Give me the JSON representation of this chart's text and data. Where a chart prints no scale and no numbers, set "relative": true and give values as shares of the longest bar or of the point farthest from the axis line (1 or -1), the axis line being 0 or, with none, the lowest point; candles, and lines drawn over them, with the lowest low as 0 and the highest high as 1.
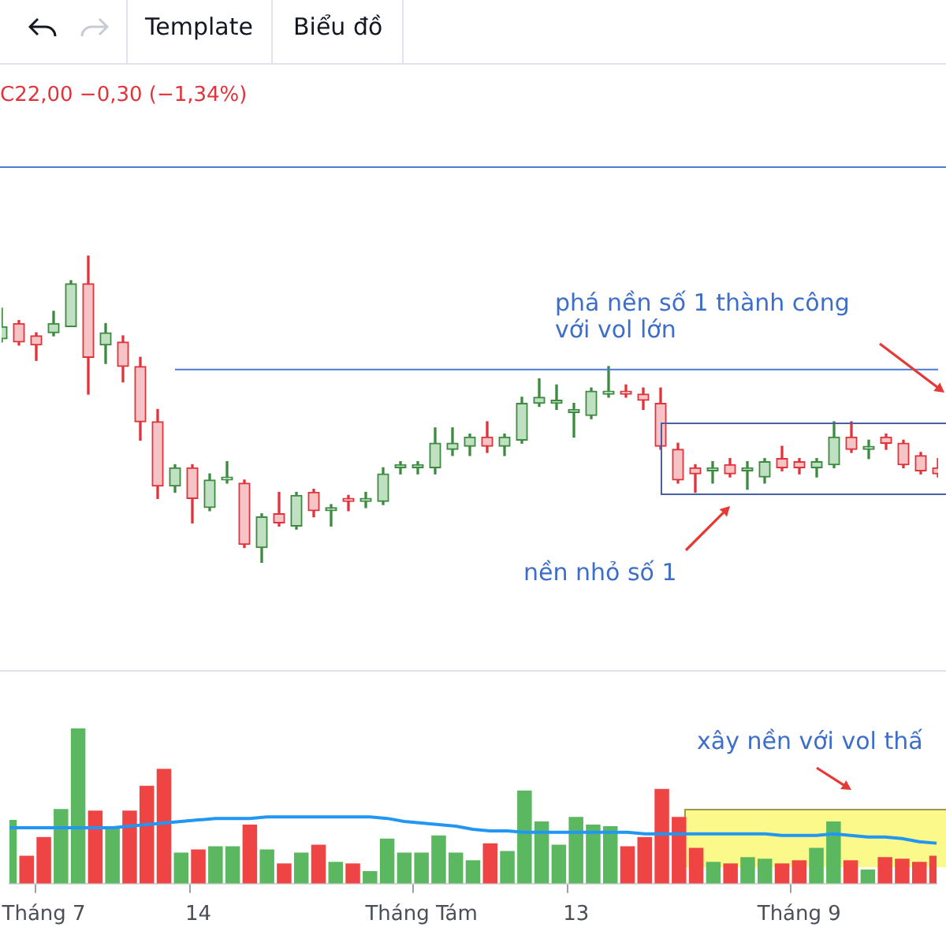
{
  "chart_data": [
    {
      "type": "candlestick",
      "relative": true,
      "tick_labels": false,
      "grid": false,
      "legend": false,
      "annotations": [
        "Template",
        "Biểu đồ",
        "C22,00 −0,30 (−1,34%)",
        "phá nền số 1 thành công\nvới vol lớn",
        "nền nhỏ số 1"
      ],
      "categories": [
        null,
        null,
        null,
        null,
        null,
        null,
        null,
        null,
        null,
        null,
        null,
        null,
        null,
        null,
        null,
        null,
        null,
        null,
        null,
        null,
        null,
        null,
        null,
        null,
        null,
        null,
        null,
        null,
        null,
        null,
        null,
        null,
        null,
        null,
        null,
        null,
        null,
        null,
        null,
        null,
        null,
        null,
        null,
        null,
        null,
        null,
        null,
        null,
        null,
        null,
        null,
        null,
        null,
        null,
        null
      ],
      "ohlc": [
        [
          0.73,
          0.83,
          0.72,
          0.77
        ],
        [
          0.78,
          0.79,
          0.71,
          0.72
        ],
        [
          0.74,
          0.75,
          0.66,
          0.71
        ],
        [
          0.75,
          0.82,
          0.74,
          0.78
        ],
        [
          0.77,
          0.92,
          0.77,
          0.91
        ],
        [
          0.91,
          1,
          0.55,
          0.67
        ],
        [
          0.71,
          0.78,
          0.65,
          0.75
        ],
        [
          0.72,
          0.74,
          0.59,
          0.64
        ],
        [
          0.64,
          0.67,
          0.4,
          0.46
        ],
        [
          0.46,
          0.5,
          0.21,
          0.25
        ],
        [
          0.25,
          0.32,
          0.23,
          0.31
        ],
        [
          0.31,
          0.32,
          0.13,
          0.21
        ],
        [
          0.18,
          0.29,
          0.17,
          0.27
        ],
        [
          0.27,
          0.33,
          0.26,
          0.28
        ],
        [
          0.26,
          0.27,
          0.05,
          0.06
        ],
        [
          0.05,
          0.16,
          0,
          0.15
        ],
        [
          0.16,
          0.23,
          0.12,
          0.13
        ],
        [
          0.12,
          0.23,
          0.11,
          0.22
        ],
        [
          0.23,
          0.24,
          0.15,
          0.17
        ],
        [
          0.17,
          0.19,
          0.12,
          0.18
        ],
        [
          0.21,
          0.22,
          0.17,
          0.2
        ],
        [
          0.2,
          0.23,
          0.18,
          0.21
        ],
        [
          0.2,
          0.31,
          0.19,
          0.29
        ],
        [
          0.31,
          0.33,
          0.29,
          0.32
        ],
        [
          0.31,
          0.33,
          0.29,
          0.32
        ],
        [
          0.31,
          0.44,
          0.29,
          0.39
        ],
        [
          0.37,
          0.44,
          0.35,
          0.39
        ],
        [
          0.38,
          0.42,
          0.35,
          0.41
        ],
        [
          0.41,
          0.46,
          0.36,
          0.38
        ],
        [
          0.38,
          0.42,
          0.35,
          0.41
        ],
        [
          0.4,
          0.54,
          0.39,
          0.52
        ],
        [
          0.52,
          0.6,
          0.51,
          0.54
        ],
        [
          0.52,
          0.58,
          0.5,
          0.53
        ],
        [
          0.49,
          0.52,
          0.41,
          0.5
        ],
        [
          0.48,
          0.57,
          0.47,
          0.56
        ],
        [
          0.55,
          0.64,
          0.54,
          0.56
        ],
        [
          0.56,
          0.58,
          0.54,
          0.55
        ],
        [
          0.55,
          0.57,
          0.5,
          0.53
        ],
        [
          0.52,
          0.57,
          0.37,
          0.38
        ],
        [
          0.37,
          0.39,
          0.26,
          0.27
        ],
        [
          0.31,
          0.32,
          0.23,
          0.29
        ],
        [
          0.3,
          0.33,
          0.26,
          0.31
        ],
        [
          0.32,
          0.34,
          0.28,
          0.29
        ],
        [
          0.3,
          0.33,
          0.24,
          0.31
        ],
        [
          0.28,
          0.34,
          0.26,
          0.33
        ],
        [
          0.34,
          0.38,
          0.3,
          0.31
        ],
        [
          0.33,
          0.34,
          0.29,
          0.31
        ],
        [
          0.31,
          0.34,
          0.28,
          0.33
        ],
        [
          0.32,
          0.46,
          0.31,
          0.41
        ],
        [
          0.41,
          0.46,
          0.36,
          0.37
        ],
        [
          0.37,
          0.4,
          0.34,
          0.38
        ],
        [
          0.41,
          0.42,
          0.37,
          0.39
        ],
        [
          0.39,
          0.4,
          0.31,
          0.32
        ],
        [
          0.35,
          0.36,
          0.29,
          0.3
        ],
        [
          0.31,
          0.34,
          0.28,
          0.29
        ]
      ],
      "series": [
        {
          "type": "line",
          "color": "#4a7bd0",
          "values": [
            null,
            null,
            null,
            null,
            null,
            null,
            null,
            null,
            null,
            null,
            0.63,
            0.63,
            0.63,
            0.63,
            0.63,
            0.63,
            0.63,
            0.63,
            0.63,
            0.63,
            0.63,
            0.63,
            0.63,
            0.63,
            0.63,
            0.63,
            0.63,
            0.63,
            0.63,
            0.63,
            0.63,
            0.63,
            0.63,
            0.63,
            0.63,
            0.63,
            0.63,
            0.63,
            0.63,
            0.63,
            0.63,
            0.63,
            0.63,
            0.63,
            0.63,
            0.63,
            0.63,
            0.63,
            0.63,
            0.63,
            0.63,
            0.63,
            0.63,
            0.63,
            0.63
          ]
        }
      ],
      "ref_lines": [
        {
          "axis": "y",
          "value": 1.29,
          "color": "#4a7bd0"
        }
      ]
    },
    {
      "type": "bar",
      "relative": true,
      "tick_labels": "x",
      "grid": false,
      "legend": false,
      "annotations": [
        "xây nền với vol thấ"
      ],
      "categories": [
        null,
        null,
        "Tháng 7",
        null,
        null,
        null,
        null,
        null,
        null,
        null,
        null,
        "14",
        null,
        null,
        null,
        null,
        null,
        null,
        null,
        null,
        null,
        null,
        null,
        null,
        "Tháng Tám",
        null,
        null,
        null,
        null,
        null,
        null,
        null,
        null,
        "13",
        null,
        null,
        null,
        null,
        null,
        null,
        null,
        null,
        null,
        null,
        null,
        null,
        "Tháng 9",
        null,
        null,
        null,
        null,
        null,
        null,
        null,
        null
      ],
      "series": [
        {
          "type": "bar",
          "values": [
            0.41,
            0.18,
            0.3,
            0.48,
            1,
            0.47,
            0.36,
            0.47,
            0.63,
            0.74,
            0.2,
            0.22,
            0.24,
            0.24,
            0.38,
            0.22,
            0.13,
            0.2,
            0.25,
            0.14,
            0.13,
            0.08,
            0.29,
            0.2,
            0.2,
            0.31,
            0.2,
            0.15,
            0.26,
            0.21,
            0.6,
            0.4,
            0.25,
            0.43,
            0.38,
            0.37,
            0.24,
            0.3,
            0.61,
            0.43,
            0.23,
            0.14,
            0.13,
            0.17,
            0.16,
            0.13,
            0.15,
            0.23,
            0.4,
            0.15,
            0.09,
            0.17,
            0.16,
            0.14,
            0.18
          ],
          "colors": [
            "#5cb860",
            "#ef4444",
            "#ef4444",
            "#5cb860",
            "#5cb860",
            "#ef4444",
            "#5cb860",
            "#ef4444",
            "#ef4444",
            "#ef4444",
            "#5cb860",
            "#ef4444",
            "#5cb860",
            "#5cb860",
            "#ef4444",
            "#5cb860",
            "#ef4444",
            "#5cb860",
            "#ef4444",
            "#5cb860",
            "#ef4444",
            "#5cb860",
            "#5cb860",
            "#5cb860",
            "#5cb860",
            "#5cb860",
            "#5cb860",
            "#5cb860",
            "#ef4444",
            "#5cb860",
            "#5cb860",
            "#5cb860",
            "#5cb860",
            "#5cb860",
            "#5cb860",
            "#5cb860",
            "#ef4444",
            "#ef4444",
            "#ef4444",
            "#ef4444",
            "#ef4444",
            "#5cb860",
            "#ef4444",
            "#5cb860",
            "#5cb860",
            "#ef4444",
            "#ef4444",
            "#5cb860",
            "#5cb860",
            "#ef4444",
            "#5cb860",
            "#ef4444",
            "#ef4444",
            "#ef4444",
            "#ef4444"
          ]
        },
        {
          "type": "line",
          "color": "#2196f3",
          "values": [
            0.36,
            0.36,
            0.36,
            0.36,
            0.36,
            0.36,
            0.36,
            0.37,
            0.38,
            0.39,
            0.4,
            0.41,
            0.42,
            0.42,
            0.42,
            0.43,
            0.43,
            0.43,
            0.43,
            0.43,
            0.43,
            0.43,
            0.42,
            0.4,
            0.39,
            0.38,
            0.37,
            0.35,
            0.34,
            0.34,
            0.33,
            0.33,
            0.33,
            0.33,
            0.33,
            0.33,
            0.33,
            0.32,
            0.32,
            0.32,
            0.32,
            0.32,
            0.32,
            0.32,
            0.32,
            0.31,
            0.31,
            0.31,
            0.32,
            0.31,
            0.3,
            0.3,
            0.29,
            0.27,
            0.26
          ]
        }
      ]
    }
  ]
}
